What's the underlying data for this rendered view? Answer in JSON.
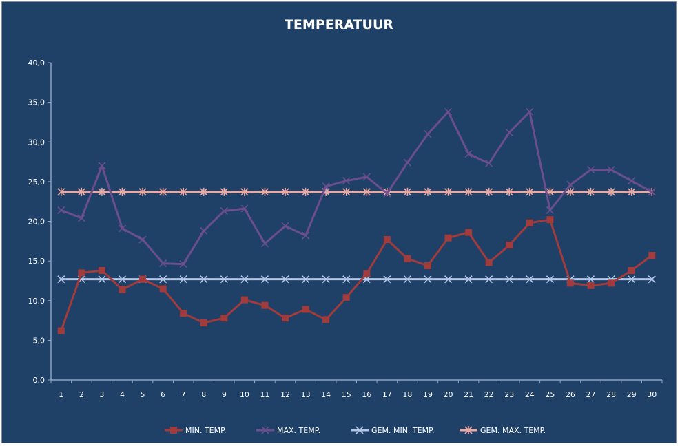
{
  "chart_data": {
    "type": "line",
    "title": "TEMPERATUUR",
    "xlabel": "",
    "ylabel": "",
    "ylim": [
      0,
      40
    ],
    "y_ticks": [
      "0,0",
      "5,0",
      "10,0",
      "15,0",
      "20,0",
      "25,0",
      "30,0",
      "35,0",
      "40,0"
    ],
    "y_tick_values": [
      0,
      5,
      10,
      15,
      20,
      25,
      30,
      35,
      40
    ],
    "categories": [
      "1",
      "2",
      "3",
      "4",
      "5",
      "6",
      "7",
      "8",
      "9",
      "10",
      "11",
      "12",
      "13",
      "14",
      "15",
      "16",
      "17",
      "18",
      "19",
      "20",
      "21",
      "22",
      "23",
      "24",
      "25",
      "26",
      "27",
      "28",
      "29",
      "30"
    ],
    "grid": false,
    "legend_position": "bottom",
    "series": [
      {
        "name": "MIN. TEMP.",
        "color": "#a23b3b",
        "marker": "square",
        "values": [
          6.2,
          13.5,
          13.8,
          11.4,
          12.7,
          11.5,
          8.4,
          7.2,
          7.8,
          10.1,
          9.4,
          7.8,
          8.9,
          7.6,
          10.4,
          13.4,
          17.7,
          15.3,
          14.4,
          17.9,
          18.6,
          14.8,
          17.0,
          19.8,
          20.2,
          12.2,
          11.9,
          12.2,
          13.8,
          15.7
        ]
      },
      {
        "name": "MAX. TEMP.",
        "color": "#6a4e8e",
        "marker": "x",
        "values": [
          21.4,
          20.4,
          27.0,
          19.1,
          17.7,
          14.7,
          14.6,
          18.8,
          21.3,
          21.6,
          17.2,
          19.4,
          18.2,
          24.4,
          25.1,
          25.6,
          23.5,
          27.4,
          31.0,
          33.8,
          28.5,
          27.3,
          31.2,
          33.8,
          21.4,
          24.6,
          26.5,
          26.5,
          25.1,
          23.7
        ]
      },
      {
        "name": "GEM. MIN. TEMP.",
        "color": "#b4c6e7",
        "marker": "x",
        "values": [
          12.7,
          12.7,
          12.7,
          12.7,
          12.7,
          12.7,
          12.7,
          12.7,
          12.7,
          12.7,
          12.7,
          12.7,
          12.7,
          12.7,
          12.7,
          12.7,
          12.7,
          12.7,
          12.7,
          12.7,
          12.7,
          12.7,
          12.7,
          12.7,
          12.7,
          12.7,
          12.7,
          12.7,
          12.7,
          12.7
        ]
      },
      {
        "name": "GEM. MAX. TEMP.",
        "color": "#e8a9a6",
        "marker": "star",
        "values": [
          23.7,
          23.7,
          23.7,
          23.7,
          23.7,
          23.7,
          23.7,
          23.7,
          23.7,
          23.7,
          23.7,
          23.7,
          23.7,
          23.7,
          23.7,
          23.7,
          23.7,
          23.7,
          23.7,
          23.7,
          23.7,
          23.7,
          23.7,
          23.7,
          23.7,
          23.7,
          23.7,
          23.7,
          23.7,
          23.7
        ]
      }
    ]
  }
}
